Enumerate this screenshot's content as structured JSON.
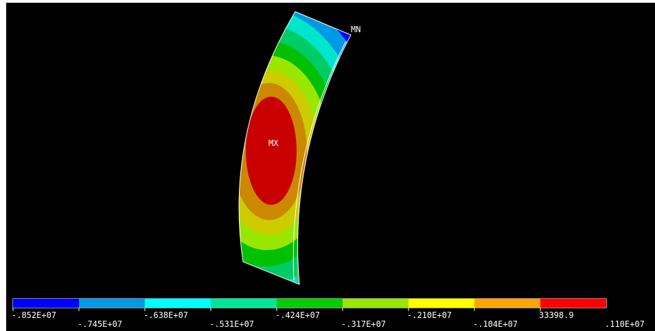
{
  "plot": {
    "max_marker": "MX",
    "min_marker": "MN",
    "colors": {
      "background": "#000000",
      "outline": "#ffffff"
    }
  },
  "legend": {
    "bands": [
      {
        "color": "#0000ff"
      },
      {
        "color": "#0099e6"
      },
      {
        "color": "#00ffff"
      },
      {
        "color": "#00e699"
      },
      {
        "color": "#00cc00"
      },
      {
        "color": "#99e600"
      },
      {
        "color": "#ffff00"
      },
      {
        "color": "#ffa500"
      },
      {
        "color": "#ff0000"
      }
    ],
    "labels": [
      "-.852E+07",
      "-.745E+07",
      "-.638E+07",
      "-.531E+07",
      "-.424E+07",
      "-.317E+07",
      "-.210E+07",
      "-.104E+07",
      "33398.9",
      ".110E+07"
    ]
  }
}
